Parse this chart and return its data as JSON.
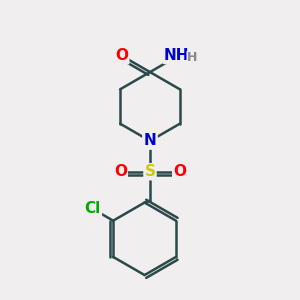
{
  "bg_color": "#f0eeee",
  "bond_color": "#2a4a4a",
  "bond_lw": 1.8,
  "atom_colors": {
    "O": "#ff0000",
    "N": "#0000cc",
    "S": "#cccc00",
    "Cl": "#00aa00",
    "H": "#888888",
    "C": "#2a4a4a"
  },
  "fs": 11,
  "fsh": 9,
  "xlim": [
    -2.5,
    2.5
  ],
  "ylim": [
    -4.2,
    4.0
  ]
}
